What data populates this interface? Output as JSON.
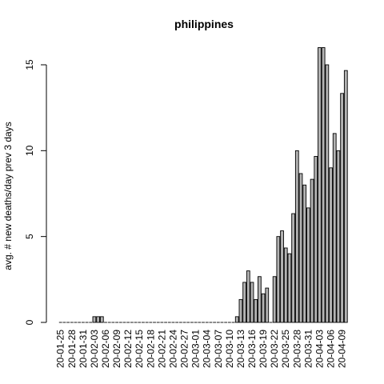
{
  "chart_data": {
    "type": "bar",
    "title": "philippines",
    "ylabel": "avg. # new deaths/day prev  3  days",
    "xlabel": "",
    "ylim": [
      0,
      16
    ],
    "yticks": [
      0,
      5,
      10,
      15
    ],
    "bar_color": "#b3b3b3",
    "categories": [
      "20-01-25",
      "20-01-26",
      "20-01-27",
      "20-01-28",
      "20-01-29",
      "20-01-30",
      "20-01-31",
      "20-02-01",
      "20-02-02",
      "20-02-03",
      "20-02-04",
      "20-02-05",
      "20-02-06",
      "20-02-07",
      "20-02-08",
      "20-02-09",
      "20-02-10",
      "20-02-11",
      "20-02-12",
      "20-02-13",
      "20-02-14",
      "20-02-15",
      "20-02-16",
      "20-02-17",
      "20-02-18",
      "20-02-19",
      "20-02-20",
      "20-02-21",
      "20-02-22",
      "20-02-23",
      "20-02-24",
      "20-02-25",
      "20-02-26",
      "20-02-27",
      "20-02-28",
      "20-02-29",
      "20-03-01",
      "20-03-02",
      "20-03-03",
      "20-03-04",
      "20-03-05",
      "20-03-06",
      "20-03-07",
      "20-03-08",
      "20-03-09",
      "20-03-10",
      "20-03-11",
      "20-03-12",
      "20-03-13",
      "20-03-14",
      "20-03-15",
      "20-03-16",
      "20-03-17",
      "20-03-18",
      "20-03-19",
      "20-03-20",
      "20-03-21",
      "20-03-22",
      "20-03-23",
      "20-03-24",
      "20-03-25",
      "20-03-26",
      "20-03-27",
      "20-03-28",
      "20-03-29",
      "20-03-30",
      "20-03-31",
      "20-04-01",
      "20-04-02",
      "20-04-03",
      "20-04-04",
      "20-04-05",
      "20-04-06",
      "20-04-07",
      "20-04-08",
      "20-04-09",
      "20-04-10"
    ],
    "values": [
      0,
      0,
      0,
      0,
      0,
      0,
      0,
      0,
      0,
      0.333,
      0.333,
      0.333,
      0,
      0,
      0,
      0,
      0,
      0,
      0,
      0,
      0,
      0,
      0,
      0,
      0,
      0,
      0,
      0,
      0,
      0,
      0,
      0,
      0,
      0,
      0,
      0,
      0,
      0,
      0,
      0,
      0,
      0,
      0,
      0,
      0,
      0,
      0,
      0.333,
      1.333,
      2.333,
      3,
      2.333,
      1.333,
      2.667,
      1.667,
      2,
      0,
      2.667,
      5,
      5.333,
      4.333,
      4,
      6.333,
      10,
      8.667,
      8,
      6.667,
      8.333,
      9.667,
      16,
      16,
      15,
      9,
      11,
      10,
      13.333,
      14.667
    ],
    "xtick_labels": [
      "20-01-25",
      "20-01-28",
      "20-01-31",
      "20-02-03",
      "20-02-06",
      "20-02-09",
      "20-02-12",
      "20-02-15",
      "20-02-18",
      "20-02-21",
      "20-02-24",
      "20-02-27",
      "20-03-01",
      "20-03-04",
      "20-03-07",
      "20-03-10",
      "20-03-13",
      "20-03-16",
      "20-03-19",
      "20-03-22",
      "20-03-25",
      "20-03-28",
      "20-03-31",
      "20-04-03",
      "20-04-06",
      "20-04-09"
    ]
  }
}
